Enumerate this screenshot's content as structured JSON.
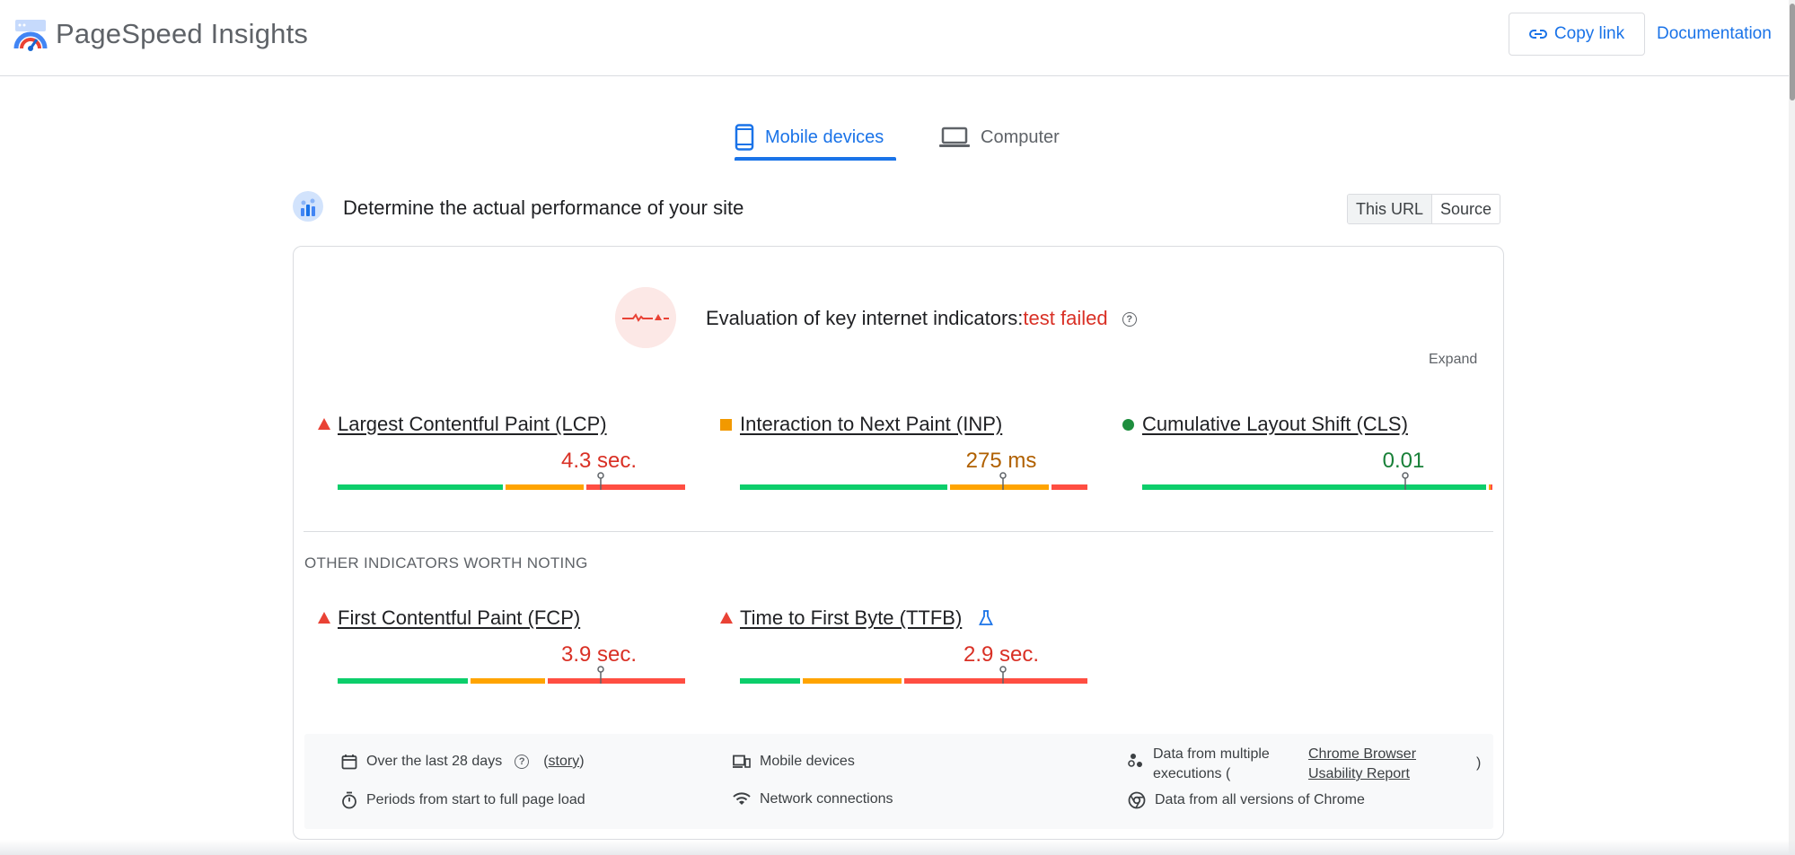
{
  "header": {
    "title": "PageSpeed Insights",
    "copy_link": "Copy link",
    "documentation": "Documentation"
  },
  "tabs": [
    {
      "label": "Mobile devices",
      "active": true
    },
    {
      "label": "Computer",
      "active": false
    }
  ],
  "section": {
    "title": "Determine the actual performance of your site",
    "toggle": [
      "This URL",
      "Source"
    ]
  },
  "assessment": {
    "label": "Evaluation of key internet indicators:",
    "status": "test failed",
    "expand": "Expand"
  },
  "core_metrics": [
    {
      "name": "Largest Contentful Paint (LCP)",
      "value": "4.3 sec.",
      "rating": "poor",
      "value_color": "#d93025",
      "distribution": [
        0.48,
        0.23,
        0.29
      ],
      "marker": 0.75
    },
    {
      "name": "Interaction to Next Paint (INP)",
      "value": "275 ms",
      "rating": "needs-improvement",
      "value_color": "#b06000",
      "distribution": [
        0.6,
        0.29,
        0.11
      ],
      "marker": 0.75
    },
    {
      "name": "Cumulative Layout Shift (CLS)",
      "value": "0.01",
      "rating": "good",
      "value_color": "#188038",
      "distribution": [
        0.99,
        0.005,
        0.005
      ],
      "marker": 0.75
    }
  ],
  "other_label": "OTHER INDICATORS WORTH NOTING",
  "other_metrics": [
    {
      "name": "First Contentful Paint (FCP)",
      "value": "3.9 sec.",
      "rating": "poor",
      "value_color": "#d93025",
      "distribution": [
        0.38,
        0.22,
        0.4
      ],
      "marker": 0.75
    },
    {
      "name": "Time to First Byte (TTFB)",
      "value": "2.9 sec.",
      "rating": "poor",
      "value_color": "#d93025",
      "distribution": [
        0.18,
        0.29,
        0.53
      ],
      "marker": 0.75,
      "experimental": true
    }
  ],
  "footer": {
    "period": "Over the last 28 days",
    "story_link": "story",
    "devices": "Mobile devices",
    "data_from": "Data from multiple executions (",
    "crux_link": "Chrome Browser Usability Report",
    "close_paren": ")",
    "load_period": "Periods from start to full page load",
    "network": "Network connections",
    "versions": "Data from all versions of Chrome"
  },
  "colors": {
    "good": "#0cce6b",
    "ni": "#ffa400",
    "poor": "#ff4e42",
    "accent": "#1a73e8"
  }
}
